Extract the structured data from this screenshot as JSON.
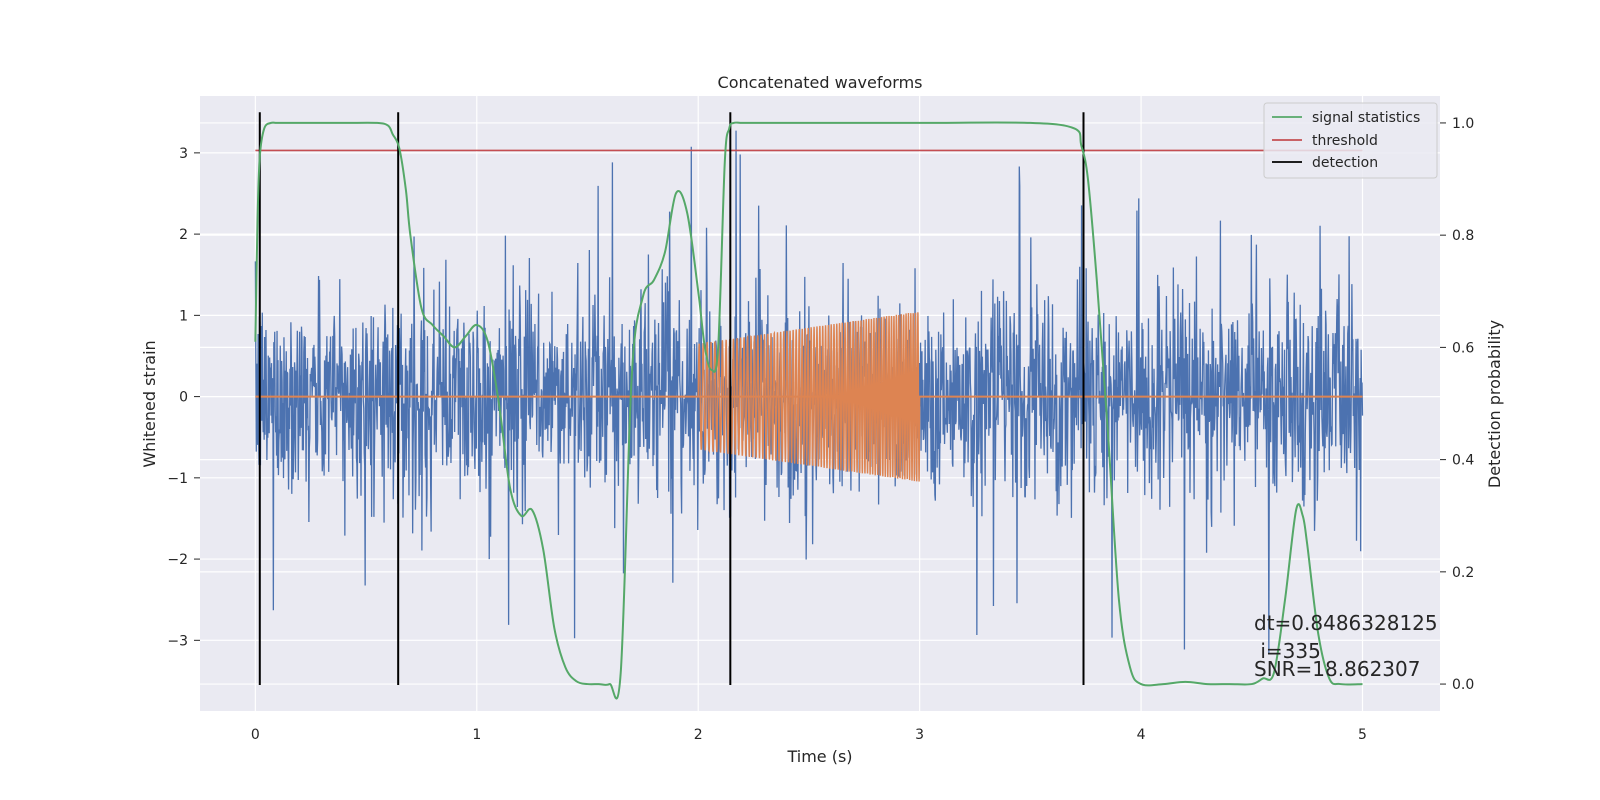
{
  "chart_data": {
    "type": "line",
    "title": "Concatenated waveforms",
    "xlabel": "Time (s)",
    "ylabel": "Whitened strain",
    "y2label": "Detection probability",
    "xlim": [
      -0.25,
      5.35
    ],
    "ylim": [
      -3.87,
      3.7
    ],
    "y2lim": [
      -0.048,
      1.048
    ],
    "x_ticks": [
      0,
      1,
      2,
      3,
      4,
      5
    ],
    "y_ticks": [
      -3,
      -2,
      -1,
      0,
      1,
      2,
      3
    ],
    "y2_ticks": [
      0.0,
      0.2,
      0.4,
      0.6,
      0.8,
      1.0
    ],
    "grid": true,
    "legend_position": "top-right",
    "colors": {
      "strain": "#4c72b0",
      "waveform": "#dd8452",
      "signal_statistics": "#55a868",
      "threshold": "#c44e52",
      "detection": "#000000",
      "plot_background": "#eaeaf2",
      "grid": "#ffffff"
    },
    "legend": [
      {
        "key": "signal_statistics",
        "label": "signal statistics"
      },
      {
        "key": "threshold",
        "label": "threshold"
      },
      {
        "key": "detection",
        "label": "detection"
      }
    ],
    "series": [
      {
        "kind": "strain_noise",
        "axis": "left",
        "x_range": [
          0,
          5
        ],
        "typical_range": [
          -1.2,
          1.2
        ],
        "extreme_range": [
          -3.3,
          3.45
        ]
      },
      {
        "kind": "injected_chirp",
        "axis": "left",
        "x_range": [
          2.0,
          3.0
        ],
        "amplitude_start": 0.65,
        "amplitude_end": 1.05,
        "baseline": 0
      },
      {
        "name": "signal statistics",
        "axis": "right",
        "x": [
          0.0,
          0.01,
          0.02,
          0.04,
          0.07,
          0.1,
          0.2,
          0.4,
          0.55,
          0.6,
          0.62,
          0.65,
          0.68,
          0.7,
          0.75,
          0.8,
          0.85,
          0.9,
          0.95,
          1.0,
          1.05,
          1.1,
          1.15,
          1.2,
          1.25,
          1.3,
          1.35,
          1.4,
          1.45,
          1.5,
          1.55,
          1.6,
          1.65,
          1.7,
          1.75,
          1.8,
          1.85,
          1.9,
          1.95,
          2.0,
          2.03,
          2.06,
          2.09,
          2.12,
          2.14,
          2.16,
          2.2,
          2.3,
          2.5,
          3.0,
          3.5,
          3.7,
          3.73,
          3.76,
          3.8,
          3.85,
          3.9,
          3.95,
          4.0,
          4.1,
          4.2,
          4.3,
          4.4,
          4.5,
          4.55,
          4.6,
          4.65,
          4.7,
          4.73,
          4.75,
          4.8,
          4.85,
          4.9,
          5.0
        ],
        "y": [
          0.61,
          0.83,
          0.94,
          0.99,
          1.0,
          1.0,
          1.0,
          1.0,
          1.0,
          0.995,
          0.98,
          0.955,
          0.88,
          0.8,
          0.67,
          0.64,
          0.62,
          0.6,
          0.62,
          0.64,
          0.61,
          0.5,
          0.35,
          0.3,
          0.31,
          0.24,
          0.1,
          0.03,
          0.005,
          0.0,
          0.0,
          0.0,
          0.02,
          0.55,
          0.69,
          0.72,
          0.77,
          0.875,
          0.84,
          0.7,
          0.6,
          0.56,
          0.6,
          0.93,
          0.99,
          1.0,
          1.0,
          1.0,
          1.0,
          1.0,
          1.0,
          0.99,
          0.96,
          0.9,
          0.72,
          0.45,
          0.15,
          0.03,
          0.0,
          0.0,
          0.004,
          0.0,
          0.0,
          0.0,
          0.01,
          0.02,
          0.15,
          0.31,
          0.3,
          0.25,
          0.09,
          0.01,
          0.0,
          0.0
        ]
      },
      {
        "name": "threshold",
        "axis": "right",
        "x": [
          0,
          5
        ],
        "y": [
          0.951,
          0.951
        ]
      },
      {
        "name": "detection",
        "axis": "left",
        "kind": "vertical_lines",
        "x": [
          0.02,
          0.645,
          2.145,
          3.74
        ],
        "y_range": [
          -3.55,
          3.5
        ]
      }
    ],
    "annotations": [
      {
        "text": "dt=0.8486328125",
        "x": 4.5,
        "y": -2.75
      },
      {
        "text": " i=335",
        "x": 4.5,
        "y": -3.05
      },
      {
        "text": "SNR=18.862307",
        "x": 4.5,
        "y": -3.35
      }
    ]
  }
}
